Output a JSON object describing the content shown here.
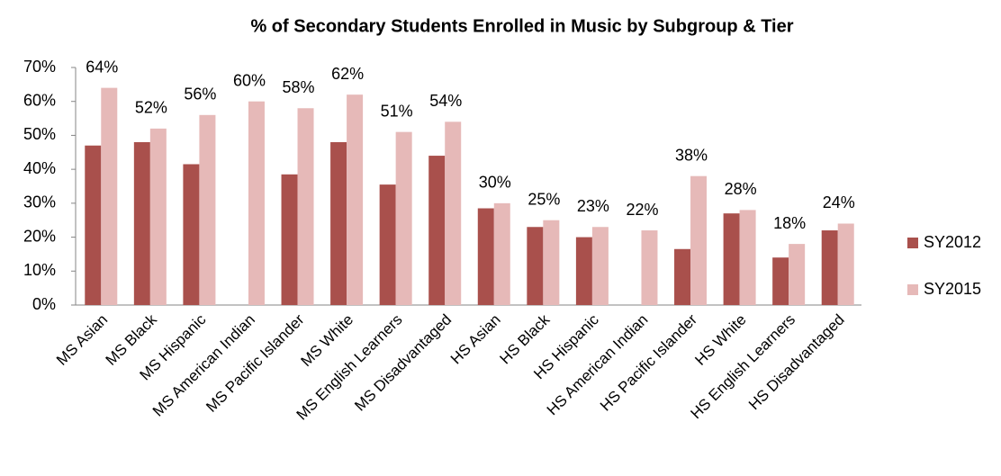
{
  "chart_data": {
    "type": "bar",
    "title": "% of Secondary Students Enrolled in Music by Subgroup & Tier",
    "categories": [
      "MS Asian",
      "MS Black",
      "MS Hispanic",
      "MS American Indian",
      "MS Pacific Islander",
      "MS White",
      "MS English Learners",
      "MS Disadvantaged",
      "HS Asian",
      "HS Black",
      "HS Hispanic",
      "HS American Indian",
      "HS Pacific Islander",
      "HS White",
      "HS English Learners",
      "HS Disadvantaged"
    ],
    "series": [
      {
        "name": "SY2012",
        "color": "#a9504c",
        "values": [
          47,
          48,
          41.5,
          null,
          38.5,
          48,
          35.5,
          44,
          28.5,
          23,
          20,
          null,
          16.5,
          27,
          14,
          22
        ]
      },
      {
        "name": "SY2015",
        "color": "#e6b9b8",
        "values": [
          64,
          52,
          56,
          60,
          58,
          62,
          51,
          54,
          30,
          25,
          23,
          22,
          38,
          28,
          18,
          24
        ],
        "value_labels": [
          "64%",
          "52%",
          "56%",
          "60%",
          "58%",
          "62%",
          "51%",
          "54%",
          "30%",
          "25%",
          "23%",
          "22%",
          "38%",
          "28%",
          "18%",
          "24%"
        ]
      }
    ],
    "ylim": [
      0,
      70
    ],
    "yticks": [
      {
        "value": 0,
        "label": "0%"
      },
      {
        "value": 10,
        "label": "10%"
      },
      {
        "value": 20,
        "label": "20%"
      },
      {
        "value": 30,
        "label": "30%"
      },
      {
        "value": 40,
        "label": "40%"
      },
      {
        "value": 50,
        "label": "50%"
      },
      {
        "value": 60,
        "label": "60%"
      },
      {
        "value": 70,
        "label": "70%"
      }
    ],
    "grid": false,
    "legend": "right"
  }
}
